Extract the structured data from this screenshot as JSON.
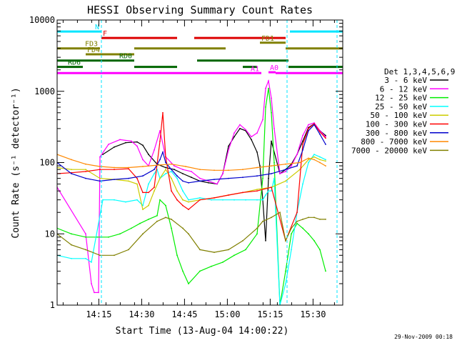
{
  "chart_data": {
    "type": "line",
    "title": "HESSI Observing Summary Count Rates",
    "xlabel": "Start Time (13-Aug-04 14:00:22)",
    "ylabel": "Count Rate (s⁻¹ detector⁻¹)",
    "yscale": "log",
    "xlim": [
      0,
      100
    ],
    "ylim": [
      1,
      10000
    ],
    "x_ticks": [
      {
        "value": 14.6,
        "label": "14:15"
      },
      {
        "value": 29.6,
        "label": "14:30"
      },
      {
        "value": 44.6,
        "label": "14:45"
      },
      {
        "value": 59.6,
        "label": "15:00"
      },
      {
        "value": 74.6,
        "label": "15:15"
      },
      {
        "value": 89.6,
        "label": "15:30"
      }
    ],
    "y_ticks": [
      {
        "value": 1,
        "label": "1"
      },
      {
        "value": 10,
        "label": "10"
      },
      {
        "value": 100,
        "label": "100"
      },
      {
        "value": 1000,
        "label": "1000"
      },
      {
        "value": 10000,
        "label": "10000"
      }
    ],
    "grid": false,
    "legend_title": "Det 1,3,4,5,6,9",
    "legend_position": "right",
    "footer_text": "29-Nov-2009 00:18",
    "colors": {
      "background": "#ffffff",
      "axes": "#000000",
      "title": "#000000",
      "cyan_marker": "#00e5ff",
      "magenta_marker": "#ff00ff"
    },
    "series": [
      {
        "name": "3 - 6 keV",
        "color": "#000000",
        "x": [
          16,
          20,
          24,
          28,
          30,
          32,
          35,
          38,
          41,
          44,
          47,
          50,
          53,
          56,
          58,
          60,
          62,
          64,
          66,
          68,
          70,
          71,
          72,
          73,
          74,
          75,
          78,
          80,
          82,
          84,
          86,
          88,
          90,
          92,
          94
        ],
        "y": [
          130,
          165,
          190,
          195,
          175,
          130,
          95,
          85,
          80,
          70,
          62,
          55,
          52,
          50,
          70,
          170,
          230,
          300,
          280,
          210,
          140,
          90,
          30,
          8,
          60,
          200,
          70,
          80,
          95,
          130,
          200,
          310,
          350,
          280,
          240
        ]
      },
      {
        "name": "6 - 12 keV",
        "color": "#ff00ff",
        "x": [
          0,
          10,
          12,
          13,
          14.5,
          15,
          18,
          22,
          26,
          28,
          30,
          32,
          34,
          36,
          38,
          41,
          44,
          47,
          50,
          53,
          56,
          58,
          60,
          62,
          64,
          66,
          68,
          70,
          72,
          73,
          74,
          75,
          76,
          78,
          80,
          82,
          84,
          86,
          88,
          90,
          92,
          94
        ],
        "y": [
          45,
          10,
          2,
          1.5,
          1.5,
          120,
          180,
          210,
          200,
          170,
          110,
          90,
          150,
          280,
          120,
          90,
          80,
          75,
          60,
          55,
          50,
          70,
          150,
          260,
          340,
          290,
          230,
          260,
          400,
          1100,
          1400,
          800,
          300,
          70,
          75,
          90,
          130,
          240,
          340,
          360,
          280,
          230
        ]
      },
      {
        "name": "12 - 25 keV",
        "color": "#00ee00",
        "x": [
          0,
          5,
          10,
          14,
          18,
          22,
          26,
          29,
          32,
          35,
          36,
          38,
          40,
          42,
          44,
          46,
          50,
          54,
          58,
          62,
          66,
          70,
          72,
          73,
          74,
          75,
          76,
          78,
          80,
          82,
          84,
          86,
          88,
          90,
          92,
          94
        ],
        "y": [
          12,
          10,
          9,
          9,
          9,
          10,
          12,
          14,
          16,
          18,
          30,
          25,
          12,
          5,
          3,
          2,
          3,
          3.5,
          4,
          5,
          6,
          10,
          60,
          600,
          1100,
          500,
          100,
          1,
          3,
          10,
          14,
          12,
          10,
          8,
          6,
          3
        ]
      },
      {
        "name": "25 - 50 keV",
        "color": "#00ffff",
        "x": [
          0,
          5,
          10,
          12,
          16,
          20,
          24,
          28,
          30,
          32,
          34,
          35,
          36,
          38,
          40,
          42,
          44,
          46,
          50,
          54,
          58,
          62,
          66,
          70,
          72,
          73,
          74,
          75,
          76,
          78,
          80,
          82,
          84,
          86,
          88,
          90,
          92,
          94
        ],
        "y": [
          5,
          4.5,
          4.5,
          4,
          30,
          30,
          28,
          30,
          25,
          50,
          70,
          80,
          60,
          70,
          75,
          60,
          40,
          30,
          32,
          30,
          30,
          30,
          30,
          30,
          30,
          35,
          40,
          40,
          60,
          1,
          2,
          6,
          20,
          50,
          100,
          130,
          120,
          110
        ]
      },
      {
        "name": "50 - 100 keV",
        "color": "#cccc00",
        "x": [
          0,
          5,
          10,
          15,
          20,
          25,
          28,
          30,
          32,
          34,
          36,
          38,
          40,
          42,
          44,
          46,
          50,
          55,
          60,
          65,
          70,
          75,
          80,
          85,
          88,
          90,
          92,
          94
        ],
        "y": [
          85,
          80,
          80,
          60,
          58,
          55,
          50,
          22,
          25,
          40,
          60,
          80,
          60,
          40,
          30,
          28,
          30,
          32,
          35,
          38,
          42,
          45,
          55,
          80,
          110,
          120,
          110,
          105
        ]
      },
      {
        "name": "100 - 300 keV",
        "color": "#ff0000",
        "x": [
          0,
          5,
          10,
          15,
          20,
          25,
          28,
          30,
          32,
          34,
          36,
          37,
          38,
          40,
          42,
          44,
          46,
          50,
          55,
          60,
          65,
          70,
          75,
          80,
          84,
          86,
          88,
          90,
          92,
          94
        ],
        "y": [
          70,
          72,
          75,
          80,
          80,
          82,
          60,
          38,
          38,
          45,
          200,
          500,
          120,
          40,
          30,
          25,
          22,
          30,
          32,
          35,
          38,
          40,
          45,
          8,
          20,
          180,
          300,
          350,
          270,
          220
        ]
      },
      {
        "name": "300 - 800 keV",
        "color": "#0000cc",
        "x": [
          0,
          5,
          10,
          15,
          20,
          25,
          30,
          34,
          36,
          37,
          38,
          40,
          42,
          44,
          46,
          50,
          55,
          60,
          65,
          70,
          75,
          80,
          84,
          86,
          88,
          90,
          92,
          94
        ],
        "y": [
          100,
          70,
          60,
          55,
          58,
          60,
          65,
          80,
          110,
          140,
          100,
          80,
          65,
          55,
          52,
          55,
          58,
          60,
          62,
          65,
          70,
          80,
          90,
          150,
          280,
          340,
          250,
          180
        ]
      },
      {
        "name": "800 - 7000 keV",
        "color": "#ff8800",
        "x": [
          0,
          5,
          10,
          15,
          20,
          25,
          30,
          35,
          40,
          45,
          50,
          55,
          60,
          65,
          70,
          75,
          80,
          85,
          88,
          90,
          92,
          94
        ],
        "y": [
          130,
          110,
          95,
          88,
          85,
          85,
          88,
          92,
          95,
          88,
          80,
          78,
          78,
          80,
          85,
          90,
          95,
          100,
          115,
          110,
          100,
          90
        ]
      },
      {
        "name": "7000 - 20000 keV",
        "color": "#808000",
        "x": [
          0,
          5,
          10,
          15,
          20,
          25,
          30,
          35,
          38,
          40,
          44,
          46,
          50,
          55,
          60,
          65,
          70,
          72,
          75,
          78,
          80,
          82,
          84,
          86,
          88,
          90,
          92,
          94
        ],
        "y": [
          10,
          7,
          6,
          5,
          5,
          6,
          10,
          15,
          17,
          16,
          12,
          10,
          6,
          5.5,
          6,
          8,
          12,
          15,
          17,
          20,
          8,
          12,
          15,
          16,
          17,
          17,
          16,
          16
        ]
      }
    ],
    "state_bars": [
      {
        "label": "N",
        "color": "#00e5ff",
        "level": 6900,
        "segments": [
          [
            0,
            15.5
          ],
          [
            81.5,
            100
          ]
        ]
      },
      {
        "label": "F",
        "color": "#dd0000",
        "level": 5600,
        "segments": [
          [
            15.5,
            42
          ],
          [
            48,
            80
          ]
        ]
      },
      {
        "label": "FD1",
        "color": "#808000",
        "level": 4800,
        "segments": [
          [
            71,
            80
          ]
        ]
      },
      {
        "label": "FD3",
        "color": "#808000",
        "level": 4000,
        "segments": [
          [
            0,
            15
          ],
          [
            27,
            59
          ],
          [
            80,
            100
          ]
        ]
      },
      {
        "label": "FD4",
        "color": "#808000",
        "level": 3300,
        "segments": [
          [
            10,
            27
          ]
        ]
      },
      {
        "label": "RD0",
        "color": "#006600",
        "level": 2700,
        "segments": [
          [
            0,
            27
          ],
          [
            49,
            81
          ]
        ]
      },
      {
        "label": "RD6",
        "color": "#006600",
        "level": 2200,
        "segments": [
          [
            0,
            9
          ],
          [
            27,
            42
          ],
          [
            65,
            70
          ],
          [
            81,
            100
          ]
        ]
      },
      {
        "label": "A0",
        "color": "#ff00ff",
        "level": 1850,
        "segments": [
          [
            74,
            76.5
          ]
        ]
      },
      {
        "label": "A1",
        "color": "#ff00ff",
        "level": 1800,
        "segments": [
          [
            0,
            71.5
          ],
          [
            76.5,
            100
          ]
        ]
      }
    ],
    "vertical_markers": [
      15.5,
      80.5,
      98
    ]
  }
}
